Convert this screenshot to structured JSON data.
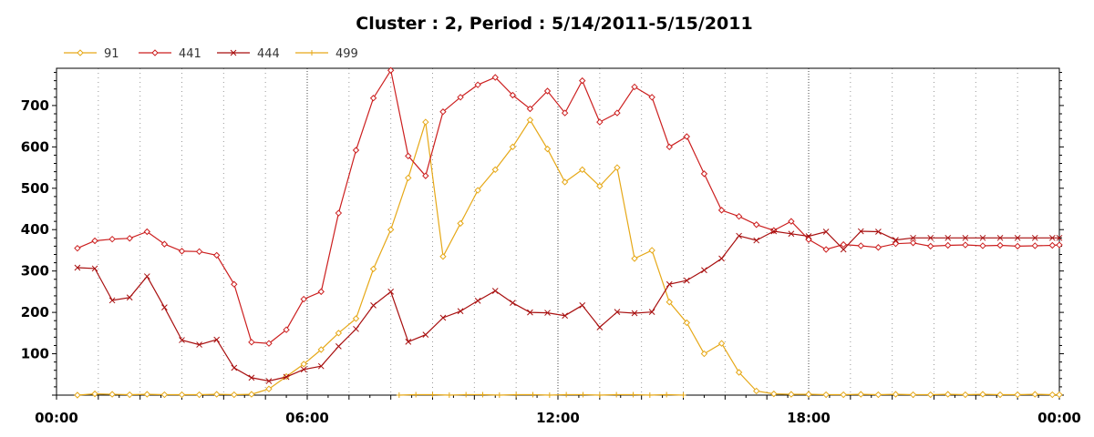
{
  "chart_data": {
    "type": "line",
    "title": "Cluster : 2, Period : 5/14/2011-5/15/2011",
    "xlabel": "",
    "ylabel": "",
    "x_unit": "hours",
    "xlim": [
      0,
      24
    ],
    "ylim": [
      0,
      790
    ],
    "x_ticks": [
      {
        "value": 0,
        "label": "00:00"
      },
      {
        "value": 6,
        "label": "06:00"
      },
      {
        "value": 12,
        "label": "12:00"
      },
      {
        "value": 18,
        "label": "18:00"
      },
      {
        "value": 24,
        "label": "00:00"
      }
    ],
    "y_ticks": [
      100,
      200,
      300,
      400,
      500,
      600,
      700
    ],
    "grid": {
      "x_dotted": true,
      "y": false
    },
    "legend_position": "top-left",
    "series": [
      {
        "name": "91",
        "color": "#e6a817",
        "marker": "diamond",
        "x": [
          0.5,
          0.917,
          1.333,
          1.75,
          2.167,
          2.583,
          3.0,
          3.417,
          3.833,
          4.25,
          4.667,
          5.083,
          5.5,
          5.917,
          6.333,
          6.75,
          7.167,
          7.583,
          8.0,
          8.417,
          8.833,
          9.25,
          9.667,
          10.083,
          10.5,
          10.917,
          11.333,
          11.75,
          12.167,
          12.583,
          13.0,
          13.417,
          13.833,
          14.25,
          14.667,
          15.083,
          15.5,
          15.917,
          16.333,
          16.75,
          17.167,
          17.583,
          18.0,
          18.417,
          18.833,
          19.25,
          19.667,
          20.083,
          20.5,
          20.917,
          21.333,
          21.75,
          22.167,
          22.583,
          23.0,
          23.417,
          23.833,
          24.0
        ],
        "y": [
          0,
          3,
          2,
          1,
          2,
          1,
          1,
          1,
          2,
          1,
          2,
          15,
          45,
          75,
          110,
          150,
          185,
          305,
          400,
          525,
          660,
          335,
          415,
          495,
          545,
          600,
          665,
          595,
          515,
          545,
          505,
          550,
          330,
          350,
          225,
          175,
          100,
          125,
          55,
          10,
          3,
          2,
          2,
          1,
          1,
          2,
          1,
          2,
          1,
          1,
          2,
          1,
          2,
          1,
          1,
          2,
          1,
          1
        ]
      },
      {
        "name": "441",
        "color": "#cc1f1f",
        "marker": "diamond",
        "x": [
          0.5,
          0.917,
          1.333,
          1.75,
          2.167,
          2.583,
          3.0,
          3.417,
          3.833,
          4.25,
          4.667,
          5.083,
          5.5,
          5.917,
          6.333,
          6.75,
          7.167,
          7.583,
          8.0,
          8.417,
          8.833,
          9.25,
          9.667,
          10.083,
          10.5,
          10.917,
          11.333,
          11.75,
          12.167,
          12.583,
          13.0,
          13.417,
          13.833,
          14.25,
          14.667,
          15.083,
          15.5,
          15.917,
          16.333,
          16.75,
          17.167,
          17.583,
          18.0,
          18.417,
          18.833,
          19.25,
          19.667,
          20.083,
          20.5,
          20.917,
          21.333,
          21.75,
          22.167,
          22.583,
          23.0,
          23.417,
          23.833,
          24.0
        ],
        "y": [
          355,
          373,
          377,
          379,
          395,
          365,
          348,
          347,
          338,
          268,
          128,
          125,
          158,
          232,
          250,
          440,
          592,
          718,
          785,
          578,
          530,
          685,
          720,
          750,
          768,
          725,
          692,
          735,
          682,
          760,
          660,
          682,
          745,
          720,
          600,
          625,
          535,
          447,
          432,
          412,
          398,
          420,
          376,
          352,
          364,
          361,
          357,
          366,
          368,
          360,
          362,
          363,
          361,
          362,
          360,
          361,
          362,
          363
        ]
      },
      {
        "name": "444",
        "color": "#a80f0f",
        "marker": "x",
        "x": [
          0.5,
          0.917,
          1.333,
          1.75,
          2.167,
          2.583,
          3.0,
          3.417,
          3.833,
          4.25,
          4.667,
          5.083,
          5.5,
          5.917,
          6.333,
          6.75,
          7.167,
          7.583,
          8.0,
          8.417,
          8.833,
          9.25,
          9.667,
          10.083,
          10.5,
          10.917,
          11.333,
          11.75,
          12.167,
          12.583,
          13.0,
          13.417,
          13.833,
          14.25,
          14.667,
          15.083,
          15.5,
          15.917,
          16.333,
          16.75,
          17.167,
          17.583,
          18.0,
          18.417,
          18.833,
          19.25,
          19.667,
          20.083,
          20.5,
          20.917,
          21.333,
          21.75,
          22.167,
          22.583,
          23.0,
          23.417,
          23.833,
          24.0
        ],
        "y": [
          308,
          306,
          229,
          236,
          287,
          212,
          133,
          122,
          134,
          66,
          42,
          34,
          44,
          62,
          70,
          118,
          160,
          217,
          250,
          129,
          146,
          187,
          203,
          228,
          252,
          223,
          200,
          199,
          192,
          217,
          164,
          201,
          198,
          201,
          268,
          277,
          302,
          330,
          385,
          374,
          396,
          390,
          384,
          395,
          352,
          396,
          395,
          375,
          380,
          380,
          380,
          380,
          380,
          380,
          380,
          380,
          380,
          380
        ]
      },
      {
        "name": "499",
        "color": "#e6a817",
        "marker": "plus",
        "x": [
          8.2,
          8.6,
          9.0,
          9.4,
          9.8,
          10.2,
          10.6,
          11.0,
          11.4,
          11.8,
          12.2,
          12.6,
          13.0,
          13.4,
          13.8,
          14.2,
          14.6,
          15.0
        ],
        "y": [
          0,
          1,
          1,
          0,
          1,
          1,
          0,
          1,
          1,
          0,
          1,
          1,
          0,
          1,
          1,
          0,
          1,
          0
        ]
      }
    ]
  }
}
